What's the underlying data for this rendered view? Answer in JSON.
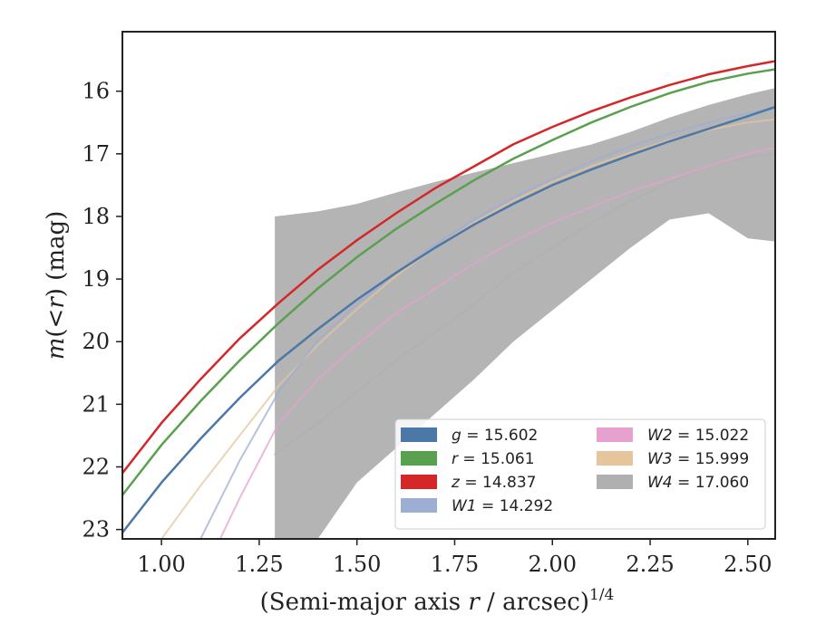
{
  "chart_data": {
    "type": "line",
    "xlabel_main": "(Semi-major axis ",
    "xlabel_var": "r",
    "xlabel_rest": " / arcsec)",
    "xlabel_sup": "1/4",
    "ylabel_m": "m",
    "ylabel_mid": "(<",
    "ylabel_r": "r",
    "ylabel_rest": ") (mag)",
    "xlim": [
      0.9,
      2.57
    ],
    "ylim": [
      23.15,
      15.05
    ],
    "y_inverted": true,
    "grid": false,
    "legend_placement": "lower-right",
    "x_ticks": [
      "1.00",
      "1.25",
      "1.50",
      "1.75",
      "2.00",
      "2.25",
      "2.50"
    ],
    "y_ticks": [
      "16",
      "17",
      "18",
      "19",
      "20",
      "21",
      "22",
      "23"
    ],
    "series": [
      {
        "band": "g",
        "value": "15.602",
        "color": "#4c78a8",
        "x": [
          0.9,
          1.0,
          1.1,
          1.2,
          1.3,
          1.4,
          1.5,
          1.6,
          1.7,
          1.8,
          1.9,
          2.0,
          2.1,
          2.2,
          2.3,
          2.4,
          2.5,
          2.57
        ],
        "y": [
          23.05,
          22.25,
          21.55,
          20.9,
          20.3,
          19.8,
          19.33,
          18.9,
          18.5,
          18.13,
          17.8,
          17.5,
          17.25,
          17.02,
          16.8,
          16.6,
          16.4,
          16.25
        ],
        "band_upper": [],
        "band_lower": []
      },
      {
        "band": "r",
        "value": "15.061",
        "color": "#59a14f",
        "x": [
          0.9,
          1.0,
          1.1,
          1.2,
          1.3,
          1.4,
          1.5,
          1.6,
          1.7,
          1.8,
          1.9,
          2.0,
          2.1,
          2.2,
          2.3,
          2.4,
          2.5,
          2.57
        ],
        "y": [
          22.45,
          21.65,
          20.95,
          20.3,
          19.7,
          19.15,
          18.65,
          18.2,
          17.8,
          17.42,
          17.08,
          16.78,
          16.5,
          16.25,
          16.03,
          15.85,
          15.72,
          15.65
        ],
        "band_upper": [],
        "band_lower": []
      },
      {
        "band": "z",
        "value": "14.837",
        "color": "#d62728",
        "x": [
          0.9,
          1.0,
          1.1,
          1.2,
          1.3,
          1.4,
          1.5,
          1.6,
          1.7,
          1.8,
          1.9,
          2.0,
          2.1,
          2.2,
          2.3,
          2.4,
          2.5,
          2.57
        ],
        "y": [
          22.1,
          21.3,
          20.6,
          19.95,
          19.38,
          18.85,
          18.38,
          17.95,
          17.55,
          17.2,
          16.85,
          16.57,
          16.32,
          16.1,
          15.9,
          15.73,
          15.6,
          15.52
        ],
        "band_upper": [],
        "band_lower": []
      },
      {
        "band": "W1",
        "value": "14.292",
        "color": "#9dadd3",
        "x": [
          1.1,
          1.2,
          1.3,
          1.4,
          1.5,
          1.6,
          1.7,
          1.8,
          1.9,
          2.0,
          2.1,
          2.2,
          2.3,
          2.4,
          2.5,
          2.57
        ],
        "y": [
          23.15,
          21.9,
          20.8,
          19.98,
          19.4,
          18.9,
          18.45,
          18.05,
          17.7,
          17.4,
          17.12,
          16.88,
          16.68,
          16.5,
          16.35,
          16.28
        ],
        "band_upper": [],
        "band_lower": []
      },
      {
        "band": "W2",
        "value": "15.022",
        "color": "#e6a1cf",
        "x": [
          1.15,
          1.2,
          1.3,
          1.4,
          1.5,
          1.6,
          1.7,
          1.8,
          1.9,
          2.0,
          2.1,
          2.2,
          2.3,
          2.4,
          2.5,
          2.57
        ],
        "y": [
          23.15,
          22.5,
          21.3,
          20.6,
          20.05,
          19.55,
          19.15,
          18.75,
          18.4,
          18.1,
          17.85,
          17.6,
          17.4,
          17.2,
          17.0,
          16.9
        ],
        "band_upper": [],
        "band_lower": []
      },
      {
        "band": "W3",
        "value": "15.999",
        "color": "#e6c49c",
        "x": [
          1.0,
          1.1,
          1.2,
          1.3,
          1.4,
          1.5,
          1.6,
          1.7,
          1.8,
          1.9,
          2.0,
          2.1,
          2.2,
          2.3,
          2.4,
          2.5,
          2.57
        ],
        "y": [
          23.15,
          22.3,
          21.5,
          20.7,
          20.05,
          19.48,
          18.95,
          18.5,
          18.1,
          17.75,
          17.45,
          17.2,
          16.98,
          16.78,
          16.62,
          16.5,
          16.45
        ],
        "band_upper": [],
        "band_lower": []
      },
      {
        "band": "W4",
        "value": "17.060",
        "color": "#b0b0b0",
        "x": [
          1.29,
          1.4,
          1.5,
          1.6,
          1.7,
          1.8,
          1.9,
          2.0,
          2.1,
          2.2,
          2.3,
          2.4,
          2.5,
          2.57
        ],
        "y": [
          21.8,
          21.3,
          20.8,
          20.3,
          19.85,
          19.4,
          18.9,
          18.5,
          18.1,
          17.75,
          17.45,
          17.2,
          17.05,
          17.0
        ],
        "band_upper": [
          18.0,
          17.92,
          17.8,
          17.62,
          17.45,
          17.3,
          17.15,
          17.0,
          16.85,
          16.65,
          16.42,
          16.22,
          16.05,
          15.95
        ],
        "band_lower": [
          23.15,
          23.15,
          22.25,
          21.7,
          21.15,
          20.6,
          20.0,
          19.5,
          19.0,
          18.5,
          18.05,
          17.95,
          18.35,
          18.4
        ]
      }
    ]
  }
}
